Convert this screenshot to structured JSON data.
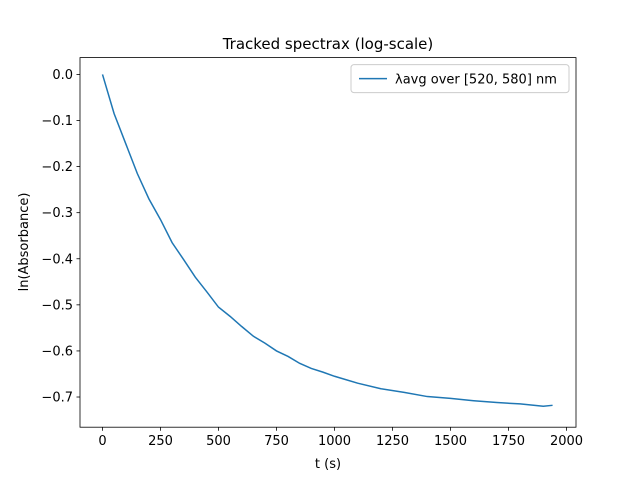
{
  "chart_data": {
    "type": "line",
    "title": "Tracked spectrax (log-scale)",
    "x_label": "t (s)",
    "y_label": "ln(Absorbance)",
    "x": [
      0,
      50,
      100,
      150,
      200,
      250,
      300,
      350,
      400,
      450,
      500,
      550,
      600,
      650,
      700,
      750,
      800,
      850,
      900,
      950,
      1000,
      1100,
      1200,
      1300,
      1400,
      1500,
      1600,
      1700,
      1800,
      1900,
      1940
    ],
    "series": [
      {
        "name": "λavg over [520, 580] nm",
        "color": "#1f77b4",
        "values": [
          0,
          -0.085,
          -0.15,
          -0.215,
          -0.27,
          -0.315,
          -0.365,
          -0.402,
          -0.44,
          -0.472,
          -0.505,
          -0.525,
          -0.547,
          -0.568,
          -0.583,
          -0.6,
          -0.612,
          -0.627,
          -0.638,
          -0.646,
          -0.655,
          -0.67,
          -0.682,
          -0.69,
          -0.699,
          -0.703,
          -0.708,
          -0.712,
          -0.715,
          -0.72,
          -0.718
        ]
      }
    ],
    "xlim": [
      -97,
      2041
    ],
    "ylim": [
      -0.7655,
      0.0365
    ],
    "xticks": [
      0,
      250,
      500,
      750,
      1000,
      1250,
      1500,
      1750,
      2000
    ],
    "yticks": [
      {
        "value": 0,
        "label": "0.0"
      },
      {
        "value": -0.1,
        "label": "−0.1"
      },
      {
        "value": -0.2,
        "label": "−0.2"
      },
      {
        "value": -0.3,
        "label": "−0.3"
      },
      {
        "value": -0.4,
        "label": "−0.4"
      },
      {
        "value": -0.5,
        "label": "−0.5"
      },
      {
        "value": -0.6,
        "label": "−0.6"
      },
      {
        "value": -0.7,
        "label": "−0.7"
      }
    ],
    "grid": false,
    "legend": "upper right"
  }
}
